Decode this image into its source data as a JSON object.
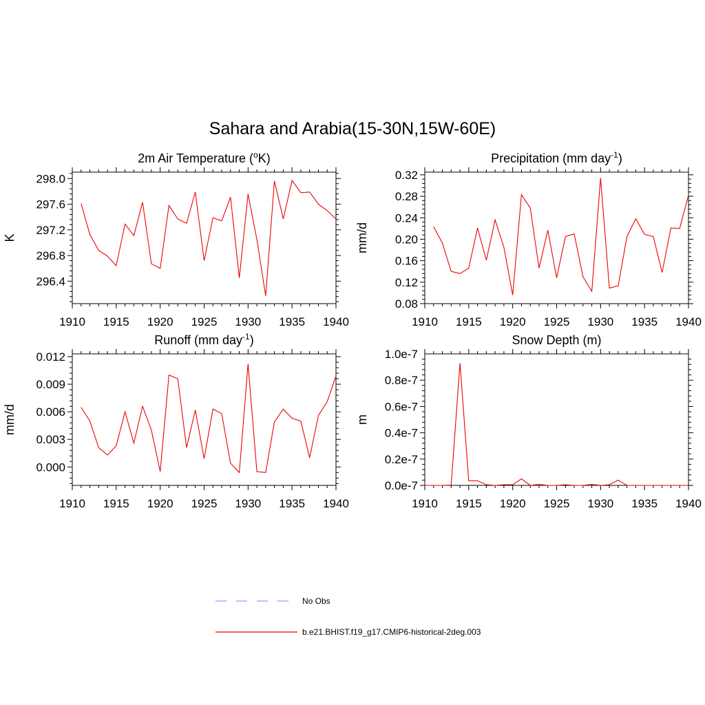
{
  "title": "Sahara and Arabia(15-30N,15W-60E)",
  "colors": {
    "model": "#ee0000",
    "obs": "#9999ff"
  },
  "legend": [
    {
      "name": "No Obs",
      "style": "dashed",
      "color": "#9999ff"
    },
    {
      "name": "b.e21.BHIST.f19_g17.CMIP6-historical-2deg.003",
      "style": "solid",
      "color": "#ee0000"
    }
  ],
  "chart_data": [
    {
      "type": "line",
      "title": "2m Air Temperature (",
      "title_sup": "o",
      "title_tail": "K)",
      "ylabel": "K",
      "xlim": [
        1910,
        1940
      ],
      "ylim": [
        296.05,
        298.1
      ],
      "xticks": [
        1910,
        1915,
        1920,
        1925,
        1930,
        1935,
        1940
      ],
      "yticks": [
        296.4,
        296.8,
        297.2,
        297.6,
        298.0
      ],
      "yticklabels": [
        "296.4",
        "296.8",
        "297.2",
        "297.6",
        "298.0"
      ],
      "xticklabels": [
        "1910",
        "1915",
        "1920",
        "1925",
        "1930",
        "1935",
        "1940"
      ],
      "series": [
        {
          "x": [
            1911,
            1912,
            1913,
            1914,
            1915,
            1916,
            1917,
            1918,
            1919,
            1920,
            1921,
            1922,
            1923,
            1924,
            1925,
            1926,
            1927,
            1928,
            1929,
            1930,
            1931,
            1932,
            1933,
            1934,
            1935,
            1936,
            1937,
            1938,
            1939,
            1940
          ],
          "values": [
            297.61,
            297.13,
            296.88,
            296.79,
            296.64,
            297.29,
            297.11,
            297.63,
            296.67,
            296.6,
            297.58,
            297.37,
            297.3,
            297.79,
            296.72,
            297.39,
            297.34,
            297.71,
            296.45,
            297.76,
            297.05,
            296.17,
            297.96,
            297.37,
            297.97,
            297.78,
            297.79,
            297.6,
            297.5,
            297.37
          ]
        }
      ]
    },
    {
      "type": "line",
      "title": "Precipitation (mm day",
      "title_sup": "-1",
      "title_tail": ")",
      "ylabel": "mm/d",
      "xlim": [
        1910,
        1940
      ],
      "ylim": [
        0.08,
        0.325
      ],
      "xticks": [
        1910,
        1915,
        1920,
        1925,
        1930,
        1935,
        1940
      ],
      "yticks": [
        0.08,
        0.12,
        0.16,
        0.2,
        0.24,
        0.28,
        0.32
      ],
      "yticklabels": [
        "0.08",
        "0.12",
        "0.16",
        "0.20",
        "0.24",
        "0.28",
        "0.32"
      ],
      "xticklabels": [
        "1910",
        "1915",
        "1920",
        "1925",
        "1930",
        "1935",
        "1940"
      ],
      "series": [
        {
          "x": [
            1911,
            1912,
            1913,
            1914,
            1915,
            1916,
            1917,
            1918,
            1919,
            1920,
            1921,
            1922,
            1923,
            1924,
            1925,
            1926,
            1927,
            1928,
            1929,
            1930,
            1931,
            1932,
            1933,
            1934,
            1935,
            1936,
            1937,
            1938,
            1939,
            1940
          ],
          "values": [
            0.223,
            0.193,
            0.14,
            0.136,
            0.146,
            0.221,
            0.161,
            0.236,
            0.185,
            0.096,
            0.283,
            0.258,
            0.146,
            0.217,
            0.128,
            0.205,
            0.21,
            0.13,
            0.103,
            0.314,
            0.109,
            0.113,
            0.205,
            0.238,
            0.209,
            0.205,
            0.138,
            0.221,
            0.22,
            0.282
          ]
        }
      ]
    },
    {
      "type": "line",
      "title": "Runoff (mm day",
      "title_sup": "-1",
      "title_tail": ")",
      "ylabel": "mm/d",
      "xlim": [
        1910,
        1940
      ],
      "ylim": [
        -0.002,
        0.0123
      ],
      "xticks": [
        1910,
        1915,
        1920,
        1925,
        1930,
        1935,
        1940
      ],
      "yticks": [
        0.0,
        0.003,
        0.006,
        0.009,
        0.012
      ],
      "yticklabels": [
        "0.000",
        "0.003",
        "0.006",
        "0.009",
        "0.012"
      ],
      "xticklabels": [
        "1910",
        "1915",
        "1920",
        "1925",
        "1930",
        "1935",
        "1940"
      ],
      "series": [
        {
          "x": [
            1911,
            1912,
            1913,
            1914,
            1915,
            1916,
            1917,
            1918,
            1919,
            1920,
            1921,
            1922,
            1923,
            1924,
            1925,
            1926,
            1927,
            1928,
            1929,
            1930,
            1931,
            1932,
            1933,
            1934,
            1935,
            1936,
            1937,
            1938,
            1939,
            1940
          ],
          "values": [
            0.0065,
            0.005,
            0.0021,
            0.0013,
            0.0023,
            0.006,
            0.0026,
            0.0066,
            0.004,
            -0.0005,
            0.01,
            0.0096,
            0.0021,
            0.0062,
            0.0009,
            0.0063,
            0.0058,
            0.0004,
            -0.0006,
            0.0112,
            -0.0005,
            -0.0006,
            0.0049,
            0.0063,
            0.0053,
            0.005,
            0.001,
            0.0056,
            0.0071,
            0.0099
          ]
        }
      ]
    },
    {
      "type": "line",
      "title": "Snow Depth (m)",
      "title_sup": "",
      "title_tail": "",
      "ylabel": "m",
      "xlim": [
        1910,
        1940
      ],
      "ylim": [
        0,
        1e-07
      ],
      "xticks": [
        1910,
        1915,
        1920,
        1925,
        1930,
        1935,
        1940
      ],
      "yticks": [
        0,
        2e-08,
        4e-08,
        6e-08,
        8e-08,
        1e-07
      ],
      "yticklabels": [
        "0.0e-7",
        "0.2e-7",
        "0.4e-7",
        "0.6e-7",
        "0.8e-7",
        "1.0e-7"
      ],
      "xticklabels": [
        "1910",
        "1915",
        "1920",
        "1925",
        "1930",
        "1935",
        "1940"
      ],
      "series": [
        {
          "x": [
            1910,
            1911,
            1912,
            1913,
            1914,
            1915,
            1916,
            1917,
            1918,
            1919,
            1920,
            1921,
            1922,
            1923,
            1924,
            1925,
            1926,
            1927,
            1928,
            1929,
            1930,
            1931,
            1932,
            1933,
            1934,
            1935,
            1936,
            1937,
            1938,
            1939,
            1940
          ],
          "values": [
            0,
            0,
            0,
            2e-10,
            9.3e-08,
            3.5e-09,
            3.5e-09,
            5e-10,
            0,
            5e-10,
            5e-10,
            5e-09,
            0,
            8e-10,
            0,
            0,
            5e-10,
            0,
            0,
            8e-10,
            0,
            5e-10,
            4e-09,
            0,
            0,
            0,
            0,
            0,
            0,
            0,
            0
          ]
        }
      ]
    }
  ]
}
